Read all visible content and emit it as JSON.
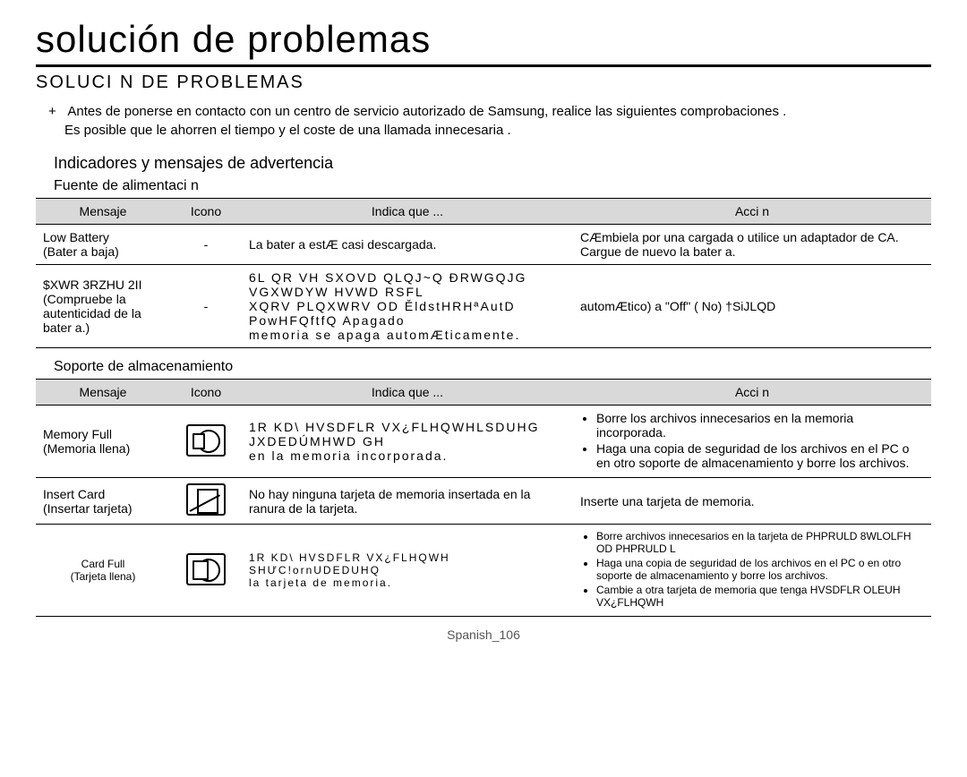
{
  "page_title": "solución de problemas",
  "section_title": "SOLUCI N DE PROBLEMAS",
  "intro_marker": "+",
  "intro_line1": "Antes de ponerse en contacto con un centro de servicio autorizado de Samsung, realice las siguientes comprobaciones .",
  "intro_line2": "Es posible que le ahorren el tiempo y el coste de una llamada innecesaria .",
  "sub_title": "Indicadores y mensajes de advertencia",
  "group1_title": "Fuente de alimentaci n",
  "headers": {
    "mensaje": "Mensaje",
    "icono": "Icono",
    "indica": "Indica que ...",
    "accion": "Acci n"
  },
  "power_rows": [
    {
      "mensaje": "Low Battery\n(Bater a baja)",
      "icono": "-",
      "indica": "La bater a estÆ casi descargada.",
      "accion": "CÆmbiela por una cargada o utilice un adaptador de CA. Cargue de nuevo la bater a."
    },
    {
      "mensaje": "$XWR 3RZHU 2II\n(Compruebe la autenticidad de la bater a.)",
      "icono": "-",
      "indica": "6L QR VH SXOVD QLQJ~Q ĐRWGQJG VGXWDYW HVWD RSFL\nXQRV   PLQXWRV  OD ĚldstHRHªAutD PowHFQftfQ Apagado\nmemoria se apaga automÆticamente.",
      "accion": "automÆtico) a \"Off\" ( No) †SiJLQD"
    }
  ],
  "group2_title": "Soporte de almacenamiento",
  "storage_rows": [
    {
      "mensaje": "Memory Full\n(Memoria llena)",
      "icon": "memory-full-icon",
      "indica": "1R KD\\ HVSDFLR VX¿FLHQWHLSDUHG JXDEDÚMHWD GH\nen la memoria incorporada.",
      "accion_items": [
        "Borre los archivos innecesarios en la memoria incorporada.",
        "Haga una copia de seguridad de los archivos en el PC o en otro soporte de almacenamiento y borre los archivos."
      ]
    },
    {
      "mensaje": "Insert Card\n(Insertar tarjeta)",
      "icon": "insert-card-icon",
      "indica": "No hay ninguna tarjeta de memoria insertada en la ranura de la tarjeta.",
      "accion_text": "Inserte una tarjeta de memoria."
    },
    {
      "mensaje": "Card Full\n(Tarjeta llena)",
      "icon": "card-full-icon",
      "indica": "1R KD\\ HVSDFLR VX¿FLHQWH SHƯC!ornUDEDUHQ\nla tarjeta de memoria.",
      "accion_items": [
        "Borre archivos innecesarios en la tarjeta de PHPRULD 8WLOLFH OD PHPRULD L",
        "Haga una copia de seguridad de los archivos en el PC o en otro soporte de almacenamiento y borre los archivos.",
        "Cambie a otra tarjeta de memoria que tenga HVSDFLR OLEUH VX¿FLHQWH"
      ]
    }
  ],
  "footer": "Spanish_106"
}
